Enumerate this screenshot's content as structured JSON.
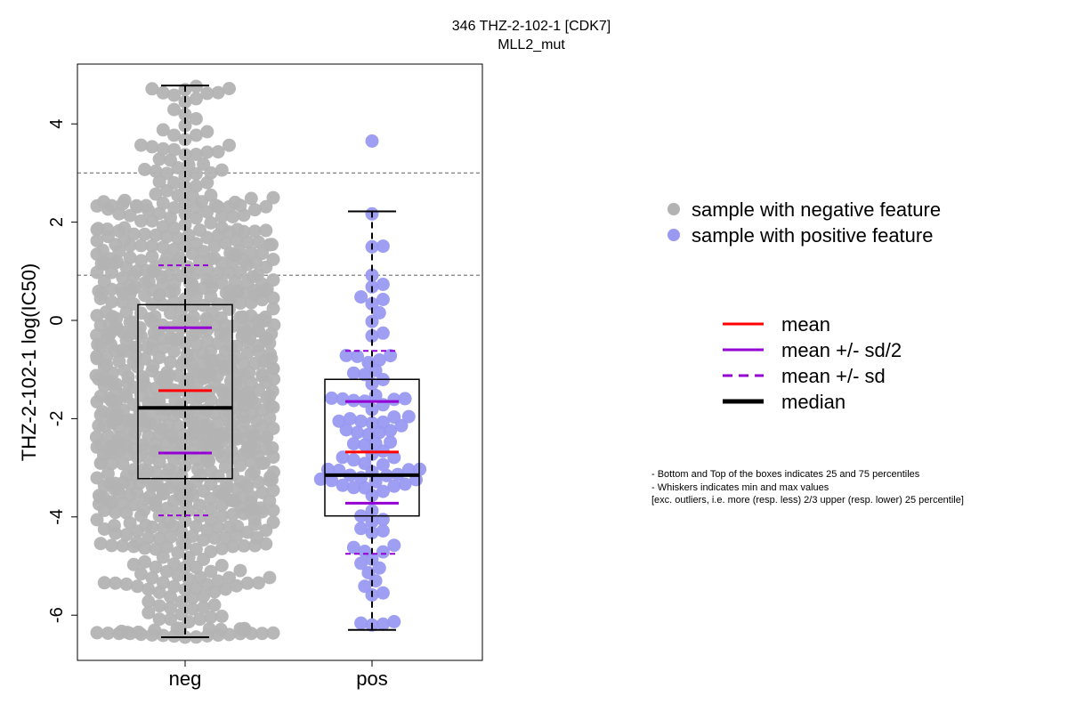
{
  "chart_data": {
    "type": "box",
    "title": "346 THZ-2-102-1 [CDK7]",
    "subtitle": "MLL2_mut",
    "xlabel": "",
    "ylabel": "THZ-2-102-1 log(IC50)",
    "categories": [
      "neg",
      "pos"
    ],
    "ylim": [
      -6.8,
      5.0
    ],
    "yticks": [
      4,
      2,
      0,
      -2,
      -4,
      -6
    ],
    "grid": false,
    "reference_lines": [
      3.0,
      0.92
    ],
    "groups": [
      {
        "name": "neg",
        "n": 900,
        "color": "#b3b3b3",
        "min": -6.45,
        "q1": -3.22,
        "median": -1.78,
        "q3": 0.32,
        "max": 4.78,
        "mean": -1.43,
        "mean_minus_sd_half": -2.7,
        "mean_plus_sd_half": -0.15,
        "mean_minus_sd": -3.97,
        "mean_plus_sd": 1.12
      },
      {
        "name": "pos",
        "n": 100,
        "color": "#9999f2",
        "min": -6.3,
        "q1": -3.98,
        "median": -3.15,
        "q3": -1.2,
        "max": 2.22,
        "mean": -2.68,
        "mean_minus_sd_half": -3.72,
        "mean_plus_sd_half": -1.65,
        "mean_minus_sd": -4.75,
        "mean_plus_sd": -0.62,
        "outliers": [
          3.65
        ]
      }
    ],
    "legend": {
      "placement": "right",
      "points": [
        {
          "label": "sample with negative feature",
          "color": "#b3b3b3"
        },
        {
          "label": "sample with positive feature",
          "color": "#9999f2"
        }
      ],
      "lines": [
        {
          "label": "mean",
          "color": "#ff0000",
          "style": "solid"
        },
        {
          "label": "mean +/- sd/2",
          "color": "#9400d3",
          "style": "solid"
        },
        {
          "label": "mean +/- sd",
          "color": "#9400d3",
          "style": "dashed"
        },
        {
          "label": "median",
          "color": "#000000",
          "style": "solid-bold"
        }
      ]
    },
    "notes": [
      "- Bottom and Top of the boxes indicates 25 and 75 percentiles",
      "- Whiskers indicates min and max values",
      "[exc. outliers, i.e. more (resp. less) 2/3 upper (resp. lower) 25 percentile]"
    ]
  }
}
